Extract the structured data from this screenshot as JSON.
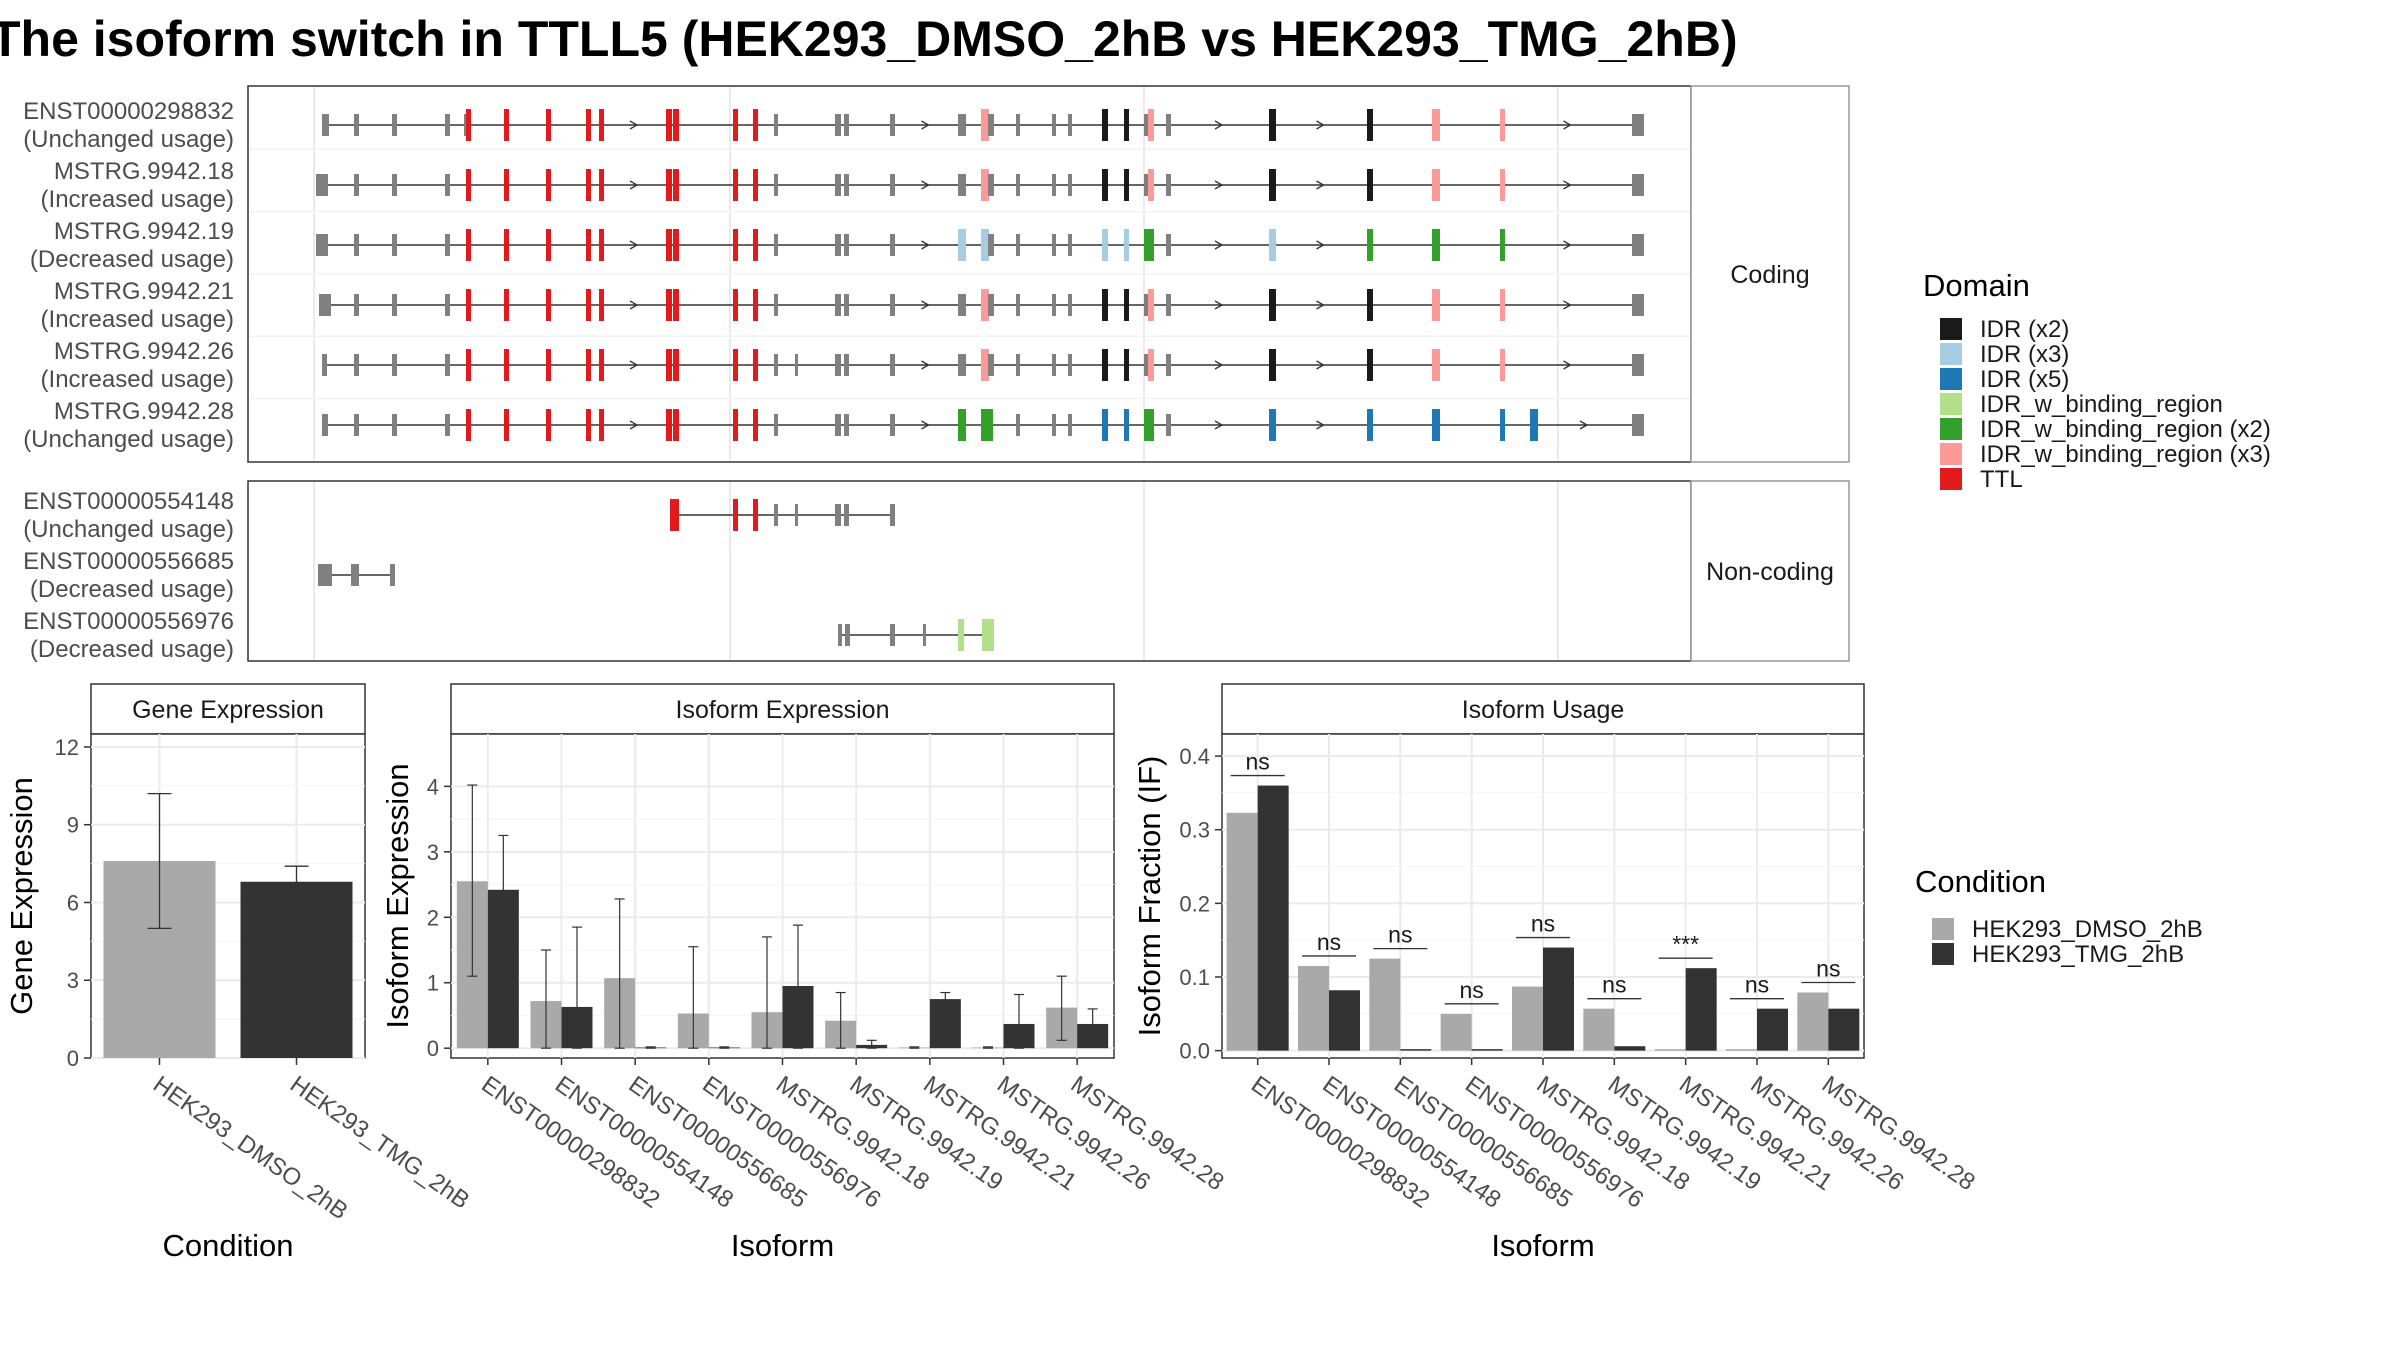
{
  "title": "The isoform switch in TTLL5 (HEK293_DMSO_2hB vs HEK293_TMG_2hB)",
  "colors": {
    "IDR (x2)": "#1a1a1a",
    "IDR (x3)": "#a6cee3",
    "IDR (x5)": "#1f78b4",
    "IDR_w_binding_region": "#b2df8a",
    "IDR_w_binding_region (x2)": "#33a02c",
    "IDR_w_binding_region (x3)": "#fb9a99",
    "TTL": "#e31a1c",
    "none": "#808080",
    "dmso": "#a9a9a9",
    "tmg": "#333333"
  },
  "legend_domain": {
    "title": "Domain",
    "items": [
      "IDR (x2)",
      "IDR (x3)",
      "IDR (x5)",
      "IDR_w_binding_region",
      "IDR_w_binding_region (x2)",
      "IDR_w_binding_region (x3)",
      "TTL"
    ]
  },
  "legend_condition": {
    "title": "Condition",
    "items": [
      "HEK293_DMSO_2hB",
      "HEK293_TMG_2hB"
    ]
  },
  "transcripts": {
    "coding_label": "Coding",
    "noncoding_label": "Non-coding",
    "coding": [
      {
        "id": "ENST00000298832",
        "usage": "(Unchanged usage)"
      },
      {
        "id": "MSTRG.9942.18",
        "usage": "(Increased usage)"
      },
      {
        "id": "MSTRG.9942.19",
        "usage": "(Decreased usage)"
      },
      {
        "id": "MSTRG.9942.21",
        "usage": "(Increased usage)"
      },
      {
        "id": "MSTRG.9942.26",
        "usage": "(Increased usage)"
      },
      {
        "id": "MSTRG.9942.28",
        "usage": "(Unchanged usage)"
      }
    ],
    "noncoding": [
      {
        "id": "ENST00000554148",
        "usage": "(Unchanged usage)"
      },
      {
        "id": "ENST00000556685",
        "usage": "(Decreased usage)"
      },
      {
        "id": "ENST00000556976",
        "usage": "(Decreased usage)"
      }
    ]
  },
  "chart_data": [
    {
      "type": "bar",
      "title": "Gene Expression",
      "xlabel": "Condition",
      "ylabel": "Gene Expression",
      "categories": [
        "HEK293_DMSO_2hB",
        "HEK293_TMG_2hB"
      ],
      "values": [
        7.6,
        6.8
      ],
      "error_low": [
        5.0,
        6.1
      ],
      "error_high": [
        10.2,
        7.4
      ],
      "ylim": [
        0,
        12.5
      ],
      "yticks": [
        0,
        3,
        6,
        9,
        12
      ]
    },
    {
      "type": "bar",
      "title": "Isoform Expression",
      "xlabel": "Isoform",
      "ylabel": "Isoform Expression",
      "categories": [
        "ENST00000298832",
        "ENST00000554148",
        "ENST00000556685",
        "ENST00000556976",
        "MSTRG.9942.18",
        "MSTRG.9942.19",
        "MSTRG.9942.21",
        "MSTRG.9942.26",
        "MSTRG.9942.28"
      ],
      "series": [
        {
          "name": "HEK293_DMSO_2hB",
          "values": [
            2.55,
            0.72,
            1.07,
            0.53,
            0.55,
            0.42,
            0.01,
            0.01,
            0.62
          ],
          "err": [
            [
              1.1,
              4.02
            ],
            [
              0.0,
              1.5
            ],
            [
              0.0,
              2.28
            ],
            [
              0.0,
              1.55
            ],
            [
              0.0,
              1.7
            ],
            [
              0.0,
              0.85
            ],
            [
              0.0,
              0.02
            ],
            [
              0.0,
              0.02
            ],
            [
              0.12,
              1.1
            ]
          ]
        },
        {
          "name": "HEK293_TMG_2hB",
          "values": [
            2.42,
            0.63,
            0.01,
            0.01,
            0.95,
            0.05,
            0.75,
            0.37,
            0.37
          ],
          "err": [
            [
              1.6,
              3.25
            ],
            [
              0.0,
              1.85
            ],
            [
              0.0,
              0.02
            ],
            [
              0.0,
              0.02
            ],
            [
              0.0,
              1.88
            ],
            [
              0.0,
              0.12
            ],
            [
              0.65,
              0.85
            ],
            [
              0.0,
              0.82
            ],
            [
              0.18,
              0.6
            ]
          ]
        }
      ],
      "ylim": [
        -0.15,
        4.8
      ],
      "yticks": [
        0,
        1,
        2,
        3,
        4
      ]
    },
    {
      "type": "bar",
      "title": "Isoform Usage",
      "xlabel": "Isoform",
      "ylabel": "Isoform Fraction (IF)",
      "categories": [
        "ENST00000298832",
        "ENST00000554148",
        "ENST00000556685",
        "ENST00000556976",
        "MSTRG.9942.18",
        "MSTRG.9942.19",
        "MSTRG.9942.21",
        "MSTRG.9942.26",
        "MSTRG.9942.28"
      ],
      "series": [
        {
          "name": "HEK293_DMSO_2hB",
          "values": [
            0.323,
            0.115,
            0.125,
            0.05,
            0.087,
            0.057,
            0.0,
            0.0,
            0.079
          ]
        },
        {
          "name": "HEK293_TMG_2hB",
          "values": [
            0.36,
            0.082,
            0.0,
            0.0,
            0.14,
            0.006,
            0.112,
            0.057,
            0.057
          ]
        }
      ],
      "significance": [
        "ns",
        "ns",
        "ns",
        "ns",
        "ns",
        "ns",
        "***",
        "ns",
        "ns"
      ],
      "ylim": [
        -0.01,
        0.43
      ],
      "yticks": [
        0.0,
        0.1,
        0.2,
        0.3,
        0.4
      ],
      "ytick_labels": [
        "0.0",
        "0.1",
        "0.2",
        "0.3",
        "0.4"
      ]
    }
  ]
}
